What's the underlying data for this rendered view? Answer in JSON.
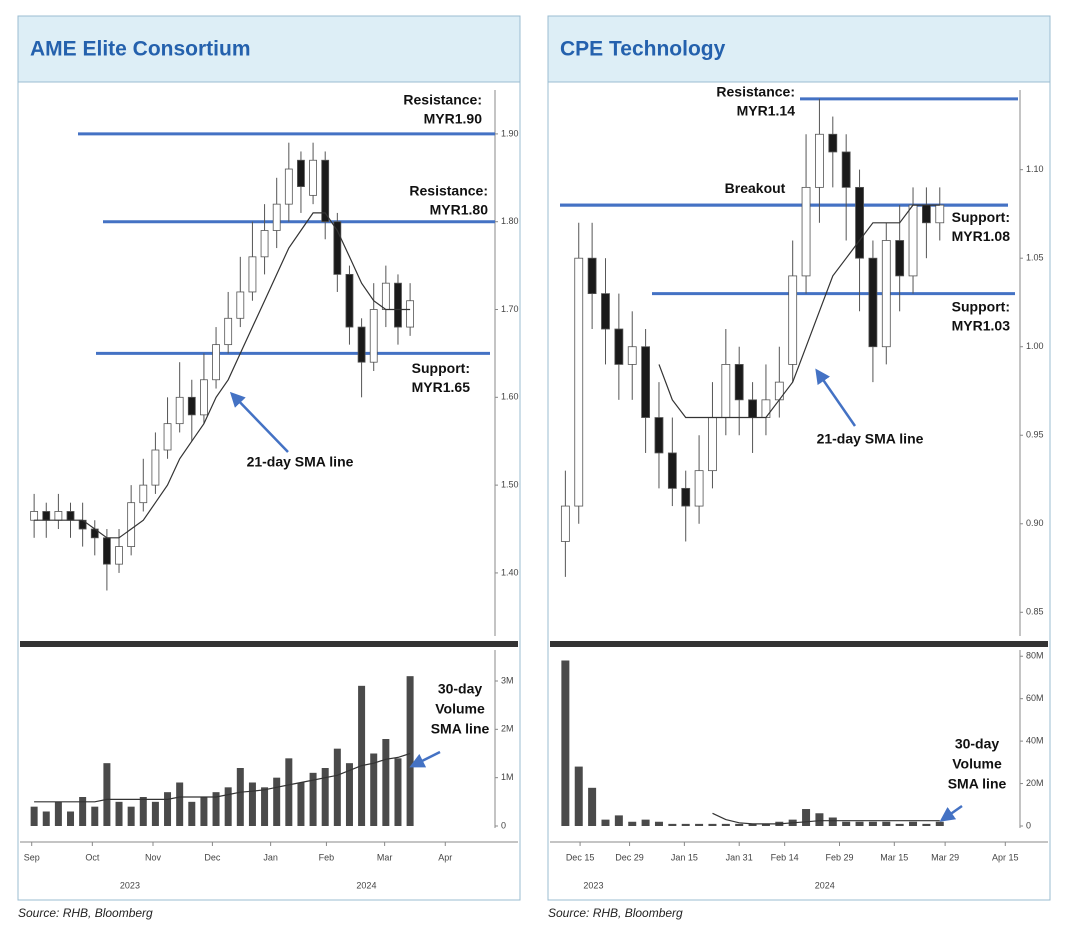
{
  "chart_data": [
    {
      "type": "candlestick",
      "title": "AME Elite Consortium",
      "source": "Source: RHB, Bloomberg",
      "colors": {
        "up": "#ffffff",
        "down": "#1a1a1a",
        "sma": "#333333",
        "level": "#4472c4",
        "volume": "#4a4a4a"
      },
      "x": [
        0,
        1,
        2,
        3,
        4,
        5,
        6,
        7,
        8,
        9,
        10,
        11,
        12,
        13,
        14,
        15,
        16,
        17,
        18,
        19,
        20,
        21,
        22,
        23,
        24,
        25,
        26,
        27,
        28,
        29,
        30,
        31
      ],
      "open": [
        1.46,
        1.47,
        1.46,
        1.47,
        1.46,
        1.45,
        1.44,
        1.41,
        1.43,
        1.48,
        1.5,
        1.54,
        1.57,
        1.6,
        1.58,
        1.62,
        1.66,
        1.69,
        1.72,
        1.76,
        1.79,
        1.82,
        1.87,
        1.83,
        1.87,
        1.8,
        1.74,
        1.68,
        1.64,
        1.7,
        1.73,
        1.68
      ],
      "high": [
        1.49,
        1.48,
        1.49,
        1.48,
        1.48,
        1.46,
        1.45,
        1.45,
        1.5,
        1.53,
        1.56,
        1.6,
        1.64,
        1.62,
        1.65,
        1.68,
        1.72,
        1.76,
        1.8,
        1.82,
        1.85,
        1.89,
        1.88,
        1.89,
        1.88,
        1.81,
        1.75,
        1.69,
        1.73,
        1.75,
        1.74,
        1.73
      ],
      "low": [
        1.44,
        1.44,
        1.45,
        1.44,
        1.43,
        1.42,
        1.38,
        1.4,
        1.42,
        1.47,
        1.49,
        1.53,
        1.56,
        1.55,
        1.57,
        1.61,
        1.65,
        1.68,
        1.71,
        1.74,
        1.77,
        1.8,
        1.81,
        1.82,
        1.78,
        1.72,
        1.66,
        1.6,
        1.63,
        1.68,
        1.66,
        1.67
      ],
      "close": [
        1.47,
        1.46,
        1.47,
        1.46,
        1.45,
        1.44,
        1.41,
        1.43,
        1.48,
        1.5,
        1.54,
        1.57,
        1.6,
        1.58,
        1.62,
        1.66,
        1.69,
        1.72,
        1.76,
        1.79,
        1.82,
        1.86,
        1.84,
        1.87,
        1.8,
        1.74,
        1.68,
        1.64,
        1.7,
        1.73,
        1.68,
        1.71
      ],
      "sma": [
        1.46,
        1.46,
        1.46,
        1.46,
        1.46,
        1.45,
        1.44,
        1.44,
        1.45,
        1.46,
        1.48,
        1.5,
        1.53,
        1.55,
        1.57,
        1.6,
        1.62,
        1.65,
        1.68,
        1.71,
        1.74,
        1.77,
        1.79,
        1.81,
        1.81,
        1.79,
        1.76,
        1.73,
        1.71,
        1.7,
        1.7,
        1.7
      ],
      "volume": [
        0.4,
        0.3,
        0.5,
        0.3,
        0.6,
        0.4,
        1.3,
        0.5,
        0.4,
        0.6,
        0.5,
        0.7,
        0.9,
        0.5,
        0.6,
        0.7,
        0.8,
        1.2,
        0.9,
        0.8,
        1.0,
        1.4,
        0.9,
        1.1,
        1.2,
        1.6,
        1.3,
        2.9,
        1.5,
        1.8,
        1.4,
        3.1
      ],
      "volume_sma": [
        0.5,
        0.5,
        0.5,
        0.5,
        0.5,
        0.5,
        0.55,
        0.55,
        0.55,
        0.55,
        0.55,
        0.55,
        0.6,
        0.6,
        0.6,
        0.6,
        0.65,
        0.7,
        0.72,
        0.75,
        0.8,
        0.85,
        0.9,
        0.95,
        1.0,
        1.05,
        1.15,
        1.25,
        1.3,
        1.38,
        1.42,
        1.5
      ],
      "xlim": [
        -1,
        38
      ],
      "xticks": [
        {
          "value": -0.2,
          "label": "Sep"
        },
        {
          "value": 4.8,
          "label": "Oct"
        },
        {
          "value": 9.8,
          "label": "Nov"
        },
        {
          "value": 14.7,
          "label": "Dec"
        },
        {
          "value": 19.5,
          "label": "Jan"
        },
        {
          "value": 24.1,
          "label": "Feb"
        },
        {
          "value": 28.9,
          "label": "Mar"
        },
        {
          "value": 33.9,
          "label": "Apr"
        }
      ],
      "year_ticks": [
        {
          "value": 7.9,
          "label": "2023"
        },
        {
          "value": 27.4,
          "label": "2024"
        }
      ],
      "ylim": [
        1.335,
        1.95
      ],
      "yticks": [
        {
          "value": 1.4,
          "label": "1.40"
        },
        {
          "value": 1.5,
          "label": "1.50"
        },
        {
          "value": 1.6,
          "label": "1.60"
        },
        {
          "value": 1.7,
          "label": "1.70"
        },
        {
          "value": 1.8,
          "label": "1.80"
        },
        {
          "value": 1.9,
          "label": "1.90"
        }
      ],
      "volume_ylim": [
        0,
        3.6
      ],
      "volume_yticks": [
        0,
        {
          "value": 1,
          "label": "1M"
        },
        {
          "value": 2,
          "label": "2M"
        },
        {
          "value": 3,
          "label": "3M"
        }
      ],
      "levels": [
        {
          "value": 1.9,
          "label": [
            "Resistance:",
            "MYR1.90"
          ]
        },
        {
          "value": 1.8,
          "label": [
            "Resistance:",
            "MYR1.80"
          ]
        },
        {
          "value": 1.65,
          "label": [
            "Support:",
            "MYR1.65"
          ]
        }
      ],
      "sma_note": [
        "21-day SMA line"
      ],
      "volume_note": [
        "30-day",
        "Volume",
        "SMA line"
      ]
    },
    {
      "type": "candlestick",
      "title": "CPE Technology",
      "source": "Source: RHB, Bloomberg",
      "colors": {
        "up": "#ffffff",
        "down": "#1a1a1a",
        "sma": "#333333",
        "level": "#4472c4",
        "volume": "#4a4a4a"
      },
      "x": [
        0,
        1,
        2,
        3,
        4,
        5,
        6,
        7,
        8,
        9,
        10,
        11,
        12,
        13,
        14,
        15,
        16,
        17,
        18,
        19,
        20,
        21,
        22,
        23,
        24,
        25,
        26,
        27,
        28
      ],
      "open": [
        0.89,
        0.91,
        1.05,
        1.03,
        1.01,
        0.99,
        1.0,
        0.96,
        0.94,
        0.92,
        0.91,
        0.93,
        0.96,
        0.99,
        0.97,
        0.96,
        0.97,
        0.99,
        1.04,
        1.09,
        1.12,
        1.11,
        1.09,
        1.05,
        1.0,
        1.06,
        1.04,
        1.08,
        1.07
      ],
      "high": [
        0.93,
        1.07,
        1.07,
        1.05,
        1.03,
        1.02,
        1.01,
        0.98,
        0.96,
        0.93,
        0.95,
        0.98,
        1.01,
        1.0,
        0.98,
        0.99,
        1.0,
        1.06,
        1.12,
        1.14,
        1.13,
        1.12,
        1.1,
        1.06,
        1.07,
        1.08,
        1.09,
        1.09,
        1.09
      ],
      "low": [
        0.87,
        0.9,
        1.01,
        0.99,
        0.97,
        0.97,
        0.94,
        0.92,
        0.91,
        0.89,
        0.9,
        0.92,
        0.95,
        0.95,
        0.94,
        0.95,
        0.96,
        0.98,
        1.03,
        1.07,
        1.09,
        1.06,
        1.02,
        0.98,
        0.99,
        1.02,
        1.03,
        1.05,
        1.06
      ],
      "close": [
        0.91,
        1.05,
        1.03,
        1.01,
        0.99,
        1.0,
        0.96,
        0.94,
        0.92,
        0.91,
        0.93,
        0.96,
        0.99,
        0.97,
        0.96,
        0.97,
        0.98,
        1.04,
        1.09,
        1.12,
        1.11,
        1.09,
        1.05,
        1.0,
        1.06,
        1.04,
        1.08,
        1.07,
        1.08
      ],
      "sma": [
        null,
        null,
        null,
        null,
        null,
        null,
        null,
        0.99,
        0.97,
        0.96,
        0.96,
        0.96,
        0.96,
        0.96,
        0.96,
        0.96,
        0.97,
        0.98,
        1.0,
        1.02,
        1.04,
        1.05,
        1.06,
        1.07,
        1.07,
        1.07,
        1.08,
        1.08,
        1.08
      ],
      "volume": [
        78,
        28,
        18,
        3,
        5,
        2,
        3,
        2,
        1,
        1,
        1,
        1,
        1,
        1,
        1,
        1,
        2,
        3,
        8,
        6,
        4,
        2,
        2,
        2,
        2,
        1,
        2,
        1,
        2
      ],
      "volume_sma": [
        null,
        null,
        null,
        null,
        null,
        null,
        null,
        null,
        null,
        null,
        null,
        6,
        3,
        1.5,
        1,
        1,
        1,
        1.5,
        2,
        2.5,
        2.5,
        2.5,
        2.5,
        2.5,
        2.5,
        2.5,
        2.5,
        2.5,
        2.5
      ],
      "xlim": [
        -1,
        34
      ],
      "xticks": [
        {
          "value": 1.1,
          "label": "Dec 15"
        },
        {
          "value": 4.8,
          "label": "Dec 29"
        },
        {
          "value": 8.9,
          "label": "Jan 15"
        },
        {
          "value": 13.0,
          "label": "Jan 31"
        },
        {
          "value": 16.4,
          "label": "Feb 14"
        },
        {
          "value": 20.5,
          "label": "Feb 29"
        },
        {
          "value": 24.6,
          "label": "Mar 15"
        },
        {
          "value": 28.4,
          "label": "Mar 29"
        },
        {
          "value": 32.9,
          "label": "Apr 15"
        }
      ],
      "year_ticks": [
        {
          "value": 2.1,
          "label": "2023"
        },
        {
          "value": 19.4,
          "label": "2024"
        }
      ],
      "ylim": [
        0.84,
        1.145
      ],
      "yticks": [
        {
          "value": 0.85,
          "label": "0.85"
        },
        {
          "value": 0.9,
          "label": "0.90"
        },
        {
          "value": 0.95,
          "label": "0.95"
        },
        {
          "value": 1.0,
          "label": "1.00"
        },
        {
          "value": 1.05,
          "label": "1.05"
        },
        {
          "value": 1.1,
          "label": "1.10"
        }
      ],
      "volume_ylim": [
        0,
        82
      ],
      "volume_yticks": [
        0,
        {
          "value": 20,
          "label": "20M"
        },
        {
          "value": 40,
          "label": "40M"
        },
        {
          "value": 60,
          "label": "60M"
        },
        {
          "value": 80,
          "label": "80M"
        }
      ],
      "levels": [
        {
          "value": 1.14,
          "label": [
            "Resistance:",
            "MYR1.14"
          ]
        },
        {
          "value": 1.08,
          "label": [
            "Breakout"
          ]
        },
        {
          "value": 1.08,
          "label": [
            "Support:",
            "MYR1.08"
          ]
        },
        {
          "value": 1.03,
          "label": [
            "Support:",
            "MYR1.03"
          ]
        }
      ],
      "sma_note": [
        "21-day SMA line"
      ],
      "volume_note": [
        "30-day",
        "Volume",
        "SMA line"
      ]
    }
  ]
}
